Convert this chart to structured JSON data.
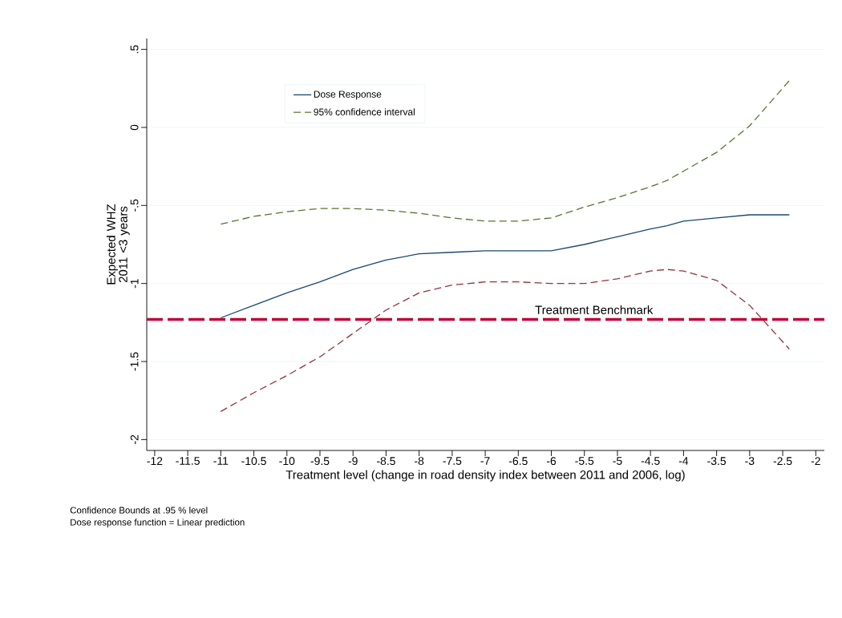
{
  "chart_data": {
    "type": "line",
    "xlabel": "Treatment level (change in road density index between 2011 and 2006, log)",
    "ylabel": "Expected WHZ 2011 <3 years",
    "x": [
      -11,
      -10.5,
      -10,
      -9.5,
      -9,
      -8.5,
      -8,
      -7.5,
      -7,
      -6.5,
      -6,
      -5.5,
      -5,
      -4.5,
      -4.25,
      -4,
      -3.5,
      -3,
      -2.4
    ],
    "series": [
      {
        "name": "Dose Response",
        "color": "#1a476f",
        "line_style": "solid",
        "values": [
          -1.22,
          -1.14,
          -1.06,
          -0.99,
          -0.91,
          -0.85,
          -0.81,
          -0.8,
          -0.79,
          -0.79,
          -0.79,
          -0.75,
          -0.7,
          -0.65,
          -0.63,
          -0.6,
          -0.58,
          -0.56,
          -0.56
        ]
      },
      {
        "name": "95% confidence interval",
        "color": "#55752f",
        "line_style": "dashed",
        "values": [
          -0.62,
          -0.57,
          -0.54,
          -0.52,
          -0.52,
          -0.53,
          -0.55,
          -0.58,
          -0.6,
          -0.6,
          -0.58,
          -0.51,
          -0.45,
          -0.38,
          -0.34,
          -0.28,
          -0.16,
          0.01,
          0.3
        ]
      },
      {
        "color": "#90353b",
        "line_style": "dashed",
        "values": [
          -1.82,
          -1.7,
          -1.59,
          -1.47,
          -1.32,
          -1.17,
          -1.06,
          -1.01,
          -0.99,
          -0.99,
          -1.0,
          -1.0,
          -0.97,
          -0.92,
          -0.91,
          -0.92,
          -0.98,
          -1.14,
          -1.42
        ]
      }
    ],
    "xlim": [
      -12.12,
      -1.87
    ],
    "ylim": [
      -2.07,
      0.57
    ],
    "xticks": [
      -12,
      -11.5,
      -11,
      -10.5,
      -10,
      -9.5,
      -9,
      -8.5,
      -8,
      -7.5,
      -7,
      -6.5,
      -6,
      -5.5,
      -5,
      -4.5,
      -4,
      -3.5,
      -3,
      -2.5,
      -2
    ],
    "yticks": [
      -2,
      {
        "value": -1.5,
        "label": "-1.5"
      },
      -1,
      {
        "value": -0.5,
        "label": "-.5"
      },
      0,
      {
        "value": 0.5,
        "label": ".5"
      }
    ],
    "ref_lines": [
      {
        "axis": "y",
        "value": -1.23,
        "label": "Treatment Benchmark",
        "color": "#c10534",
        "line_style": "dashed"
      }
    ],
    "annotations": [
      "Confidence Bounds at .95 % level",
      "Dose response function = Linear prediction"
    ],
    "grid": "y",
    "legend": "top",
    "marker": "none"
  }
}
